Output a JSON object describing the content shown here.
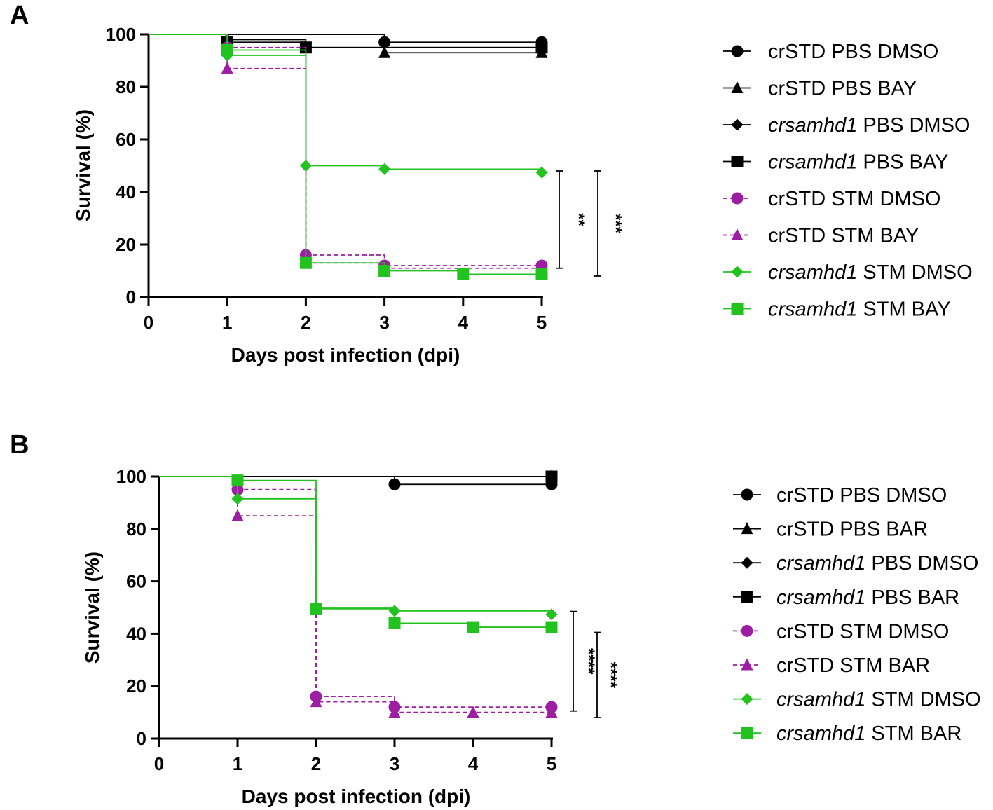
{
  "figure": {
    "description_free": true
  },
  "chart_data": [
    {
      "panel": "A",
      "type": "line",
      "subtype": "kaplan-meier survival (step)",
      "xlabel": "Days post infection (dpi)",
      "ylabel": "Survival (%)",
      "xlim": [
        0,
        5
      ],
      "ylim": [
        0,
        100
      ],
      "xticks": [
        "0",
        "1",
        "2",
        "3",
        "4",
        "5"
      ],
      "yticks": [
        "0",
        "20",
        "40",
        "60",
        "80",
        "100"
      ],
      "legend_position": "right",
      "series": [
        {
          "name": "crSTD PBS DMSO",
          "label_italic": "",
          "label_rest": "crSTD PBS DMSO",
          "color": "#000000",
          "marker": "circle",
          "dashed": false,
          "steps": [
            [
              0,
              100
            ],
            [
              3,
              97
            ],
            [
              5,
              97
            ]
          ],
          "markers": [
            [
              3,
              97
            ],
            [
              5,
              97
            ]
          ]
        },
        {
          "name": "crSTD PBS BAY",
          "label_italic": "",
          "label_rest": "crSTD PBS BAY",
          "color": "#000000",
          "marker": "triangle",
          "dashed": false,
          "steps": [
            [
              0,
              100
            ],
            [
              3,
              93
            ],
            [
              5,
              93
            ]
          ],
          "markers": [
            [
              3,
              93
            ],
            [
              5,
              93
            ]
          ]
        },
        {
          "name": "crsamhd1 PBS DMSO",
          "label_italic": "crsamhd1",
          "label_rest": " PBS DMSO",
          "color": "#000000",
          "marker": "diamond",
          "dashed": false,
          "steps": [
            [
              0,
              100
            ],
            [
              1,
              98
            ],
            [
              2,
              95
            ],
            [
              5,
              95
            ]
          ],
          "markers": [
            [
              1,
              98
            ],
            [
              2,
              95
            ],
            [
              5,
              95
            ]
          ]
        },
        {
          "name": "crsamhd1 PBS BAY",
          "label_italic": "crsamhd1",
          "label_rest": " PBS BAY",
          "color": "#000000",
          "marker": "square",
          "dashed": false,
          "steps": [
            [
              0,
              100
            ],
            [
              1,
              97
            ],
            [
              2,
              95
            ],
            [
              5,
              95
            ]
          ],
          "markers": [
            [
              1,
              97
            ],
            [
              2,
              95
            ],
            [
              5,
              95
            ]
          ]
        },
        {
          "name": "crSTD STM DMSO",
          "label_italic": "",
          "label_rest": "crSTD STM DMSO",
          "color": "#9b1fa0",
          "marker": "circle",
          "dashed": true,
          "steps": [
            [
              0,
              100
            ],
            [
              1,
              95
            ],
            [
              2,
              16
            ],
            [
              3,
              12
            ],
            [
              5,
              12
            ]
          ],
          "markers": [
            [
              1,
              95
            ],
            [
              2,
              16
            ],
            [
              3,
              12
            ],
            [
              5,
              12
            ]
          ]
        },
        {
          "name": "crSTD STM BAY",
          "label_italic": "",
          "label_rest": "crSTD STM BAY",
          "color": "#9b1fa0",
          "marker": "triangle",
          "dashed": true,
          "steps": [
            [
              0,
              100
            ],
            [
              1,
              87
            ],
            [
              2,
              13
            ],
            [
              3,
              11
            ],
            [
              5,
              11
            ]
          ],
          "markers": [
            [
              1,
              87
            ],
            [
              2,
              13
            ],
            [
              3,
              11
            ],
            [
              5,
              11
            ]
          ]
        },
        {
          "name": "crsamhd1 STM DMSO",
          "label_italic": "crsamhd1",
          "label_rest": " STM DMSO",
          "color": "#22c21f",
          "marker": "diamond",
          "dashed": false,
          "steps": [
            [
              0,
              100
            ],
            [
              1,
              92
            ],
            [
              2,
              50
            ],
            [
              3,
              48.7
            ],
            [
              5,
              47.4
            ]
          ],
          "markers": [
            [
              1,
              92
            ],
            [
              2,
              50
            ],
            [
              3,
              48.7
            ],
            [
              5,
              47.4
            ]
          ]
        },
        {
          "name": "crsamhd1 STM BAY",
          "label_italic": "crsamhd1",
          "label_rest": " STM BAY",
          "color": "#22c21f",
          "marker": "square",
          "dashed": false,
          "steps": [
            [
              0,
              100
            ],
            [
              1,
              94
            ],
            [
              2,
              13
            ],
            [
              3,
              10
            ],
            [
              4,
              8.7
            ],
            [
              5,
              8.7
            ]
          ],
          "markers": [
            [
              1,
              94
            ],
            [
              2,
              13
            ],
            [
              3,
              10
            ],
            [
              4,
              8.7
            ],
            [
              5,
              8.7
            ]
          ]
        }
      ],
      "significance": [
        {
          "text": "**",
          "y_range": [
            11,
            48
          ]
        },
        {
          "text": "***",
          "y_range": [
            8,
            48
          ]
        }
      ]
    },
    {
      "panel": "B",
      "type": "line",
      "subtype": "kaplan-meier survival (step)",
      "xlabel": "Days post infection (dpi)",
      "ylabel": "Survival (%)",
      "xlim": [
        0,
        5
      ],
      "ylim": [
        0,
        100
      ],
      "xticks": [
        "0",
        "1",
        "2",
        "3",
        "4",
        "5"
      ],
      "yticks": [
        "0",
        "20",
        "40",
        "60",
        "80",
        "100"
      ],
      "legend_position": "right",
      "series": [
        {
          "name": "crSTD PBS DMSO",
          "label_italic": "",
          "label_rest": "crSTD PBS DMSO",
          "color": "#000000",
          "marker": "circle",
          "dashed": false,
          "steps": [
            [
              0,
              100
            ],
            [
              3,
              97
            ],
            [
              5,
              97
            ]
          ],
          "markers": [
            [
              3,
              97
            ],
            [
              5,
              97
            ]
          ]
        },
        {
          "name": "crSTD PBS BAR",
          "label_italic": "",
          "label_rest": "crSTD PBS BAR",
          "color": "#000000",
          "marker": "triangle",
          "dashed": false,
          "steps": [
            [
              0,
              100
            ],
            [
              5,
              100
            ]
          ],
          "markers": [
            [
              5,
              100
            ]
          ]
        },
        {
          "name": "crsamhd1 PBS DMSO",
          "label_italic": "crsamhd1",
          "label_rest": " PBS DMSO",
          "color": "#000000",
          "marker": "diamond",
          "dashed": false,
          "steps": [
            [
              0,
              100
            ],
            [
              5,
              100
            ]
          ],
          "markers": [
            [
              5,
              100
            ]
          ]
        },
        {
          "name": "crsamhd1 PBS BAR",
          "label_italic": "crsamhd1",
          "label_rest": " PBS BAR",
          "color": "#000000",
          "marker": "square",
          "dashed": false,
          "steps": [
            [
              0,
              100
            ],
            [
              5,
              100
            ]
          ],
          "markers": [
            [
              5,
              100
            ]
          ]
        },
        {
          "name": "crSTD STM DMSO",
          "label_italic": "",
          "label_rest": "crSTD STM DMSO",
          "color": "#9b1fa0",
          "marker": "circle",
          "dashed": true,
          "steps": [
            [
              0,
              100
            ],
            [
              1,
              95
            ],
            [
              2,
              16
            ],
            [
              3,
              12
            ],
            [
              5,
              12
            ]
          ],
          "markers": [
            [
              1,
              95
            ],
            [
              2,
              16
            ],
            [
              3,
              12
            ],
            [
              5,
              12
            ]
          ]
        },
        {
          "name": "crSTD STM BAR",
          "label_italic": "",
          "label_rest": "crSTD STM BAR",
          "color": "#9b1fa0",
          "marker": "triangle",
          "dashed": true,
          "steps": [
            [
              0,
              100
            ],
            [
              1,
              85
            ],
            [
              2,
              14
            ],
            [
              3,
              10
            ],
            [
              5,
              10
            ]
          ],
          "markers": [
            [
              1,
              85
            ],
            [
              2,
              14
            ],
            [
              3,
              10
            ],
            [
              4,
              10
            ],
            [
              5,
              10
            ]
          ]
        },
        {
          "name": "crsamhd1 STM DMSO",
          "label_italic": "crsamhd1",
          "label_rest": " STM DMSO",
          "color": "#22c21f",
          "marker": "diamond",
          "dashed": false,
          "steps": [
            [
              0,
              100
            ],
            [
              1,
              91.5
            ],
            [
              2,
              50
            ],
            [
              3,
              48.7
            ],
            [
              5,
              47.4
            ]
          ],
          "markers": [
            [
              1,
              91.5
            ],
            [
              2,
              50
            ],
            [
              3,
              48.7
            ],
            [
              5,
              47.4
            ]
          ]
        },
        {
          "name": "crsamhd1 STM BAR",
          "label_italic": "crsamhd1",
          "label_rest": " STM BAR",
          "color": "#22c21f",
          "marker": "square",
          "dashed": false,
          "steps": [
            [
              0,
              100
            ],
            [
              1,
              98.5
            ],
            [
              2,
              49.5
            ],
            [
              3,
              44
            ],
            [
              4,
              42.5
            ],
            [
              5,
              42.5
            ]
          ],
          "markers": [
            [
              1,
              98.5
            ],
            [
              2,
              49.5
            ],
            [
              3,
              44
            ],
            [
              4,
              42.5
            ],
            [
              5,
              42.5
            ]
          ]
        }
      ],
      "significance": [
        {
          "text": "****",
          "y_range": [
            10.5,
            48.5
          ]
        },
        {
          "text": "****",
          "y_range": [
            8,
            40.5
          ]
        }
      ]
    }
  ]
}
